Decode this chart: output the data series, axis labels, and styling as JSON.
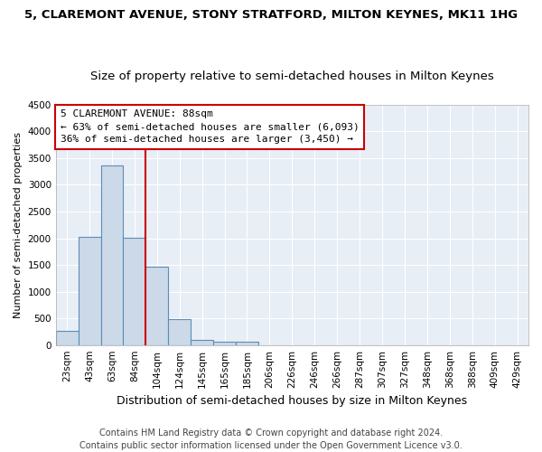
{
  "title_line1": "5, CLAREMONT AVENUE, STONY STRATFORD, MILTON KEYNES, MK11 1HG",
  "title_line2": "Size of property relative to semi-detached houses in Milton Keynes",
  "xlabel": "Distribution of semi-detached houses by size in Milton Keynes",
  "ylabel": "Number of semi-detached properties",
  "categories": [
    "23sqm",
    "43sqm",
    "63sqm",
    "84sqm",
    "104sqm",
    "124sqm",
    "145sqm",
    "165sqm",
    "185sqm",
    "206sqm",
    "226sqm",
    "246sqm",
    "266sqm",
    "287sqm",
    "307sqm",
    "327sqm",
    "348sqm",
    "368sqm",
    "388sqm",
    "409sqm",
    "429sqm"
  ],
  "values": [
    270,
    2020,
    3360,
    2010,
    1460,
    490,
    100,
    70,
    55,
    0,
    0,
    0,
    0,
    0,
    0,
    0,
    0,
    0,
    0,
    0,
    0
  ],
  "bar_color": "#ccd9e8",
  "bar_edge_color": "#5b8db8",
  "bar_linewidth": 0.8,
  "property_bin_index": 3,
  "red_line_color": "#cc0000",
  "annotation_box_color": "#cc0000",
  "annotation_text_line1": "5 CLAREMONT AVENUE: 88sqm",
  "annotation_text_line2": "← 63% of semi-detached houses are smaller (6,093)",
  "annotation_text_line3": "36% of semi-detached houses are larger (3,450) →",
  "footer_line1": "Contains HM Land Registry data © Crown copyright and database right 2024.",
  "footer_line2": "Contains public sector information licensed under the Open Government Licence v3.0.",
  "ylim": [
    0,
    4500
  ],
  "yticks": [
    0,
    500,
    1000,
    1500,
    2000,
    2500,
    3000,
    3500,
    4000,
    4500
  ],
  "plot_bg_color": "#e8eef5",
  "fig_bg_color": "#ffffff",
  "grid_color": "#ffffff",
  "title1_fontsize": 9.5,
  "title2_fontsize": 9.5,
  "xlabel_fontsize": 9,
  "ylabel_fontsize": 8,
  "tick_fontsize": 7.5,
  "annotation_fontsize": 8,
  "footer_fontsize": 7
}
